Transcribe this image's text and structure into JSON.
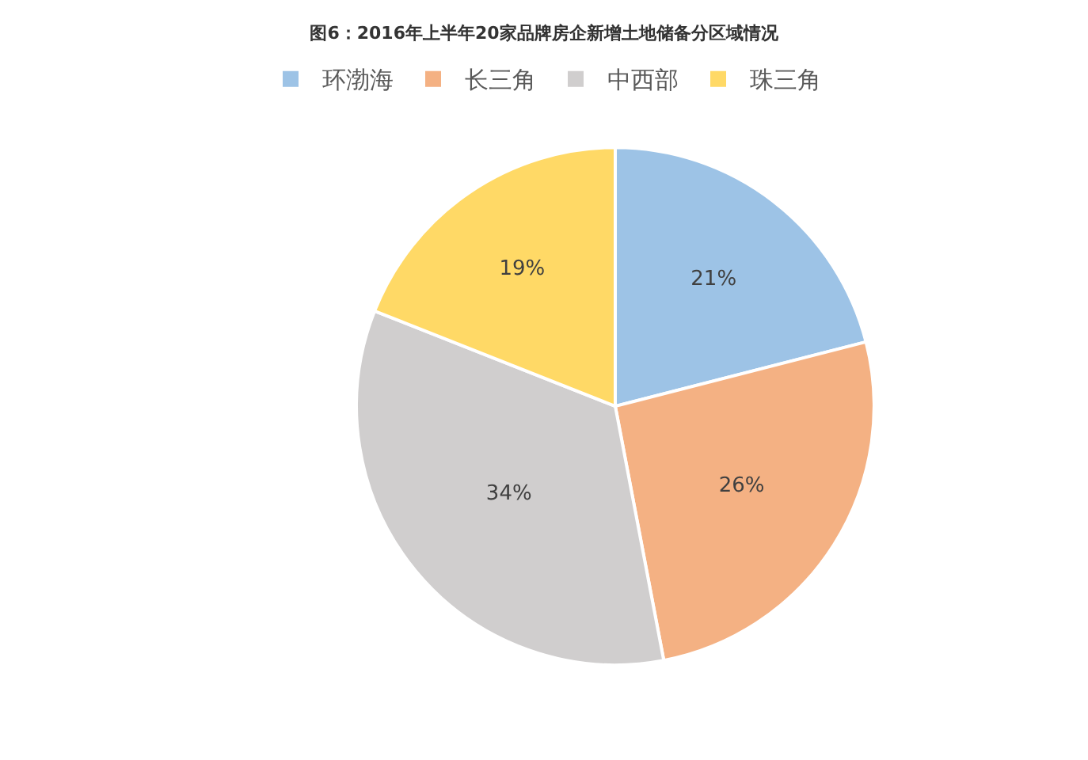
{
  "chart_data": {
    "type": "pie",
    "title": "图6：2016年上半年20家品牌房企新增土地储备分区域情况",
    "categories": [
      "环渤海",
      "长三角",
      "中西部",
      "珠三角"
    ],
    "values": [
      21,
      26,
      34,
      19
    ],
    "value_labels": [
      "21%",
      "26%",
      "34%",
      "19%"
    ],
    "colors": [
      "#9dc3e6",
      "#f4b183",
      "#d0cece",
      "#ffd966"
    ],
    "legend": "top"
  }
}
